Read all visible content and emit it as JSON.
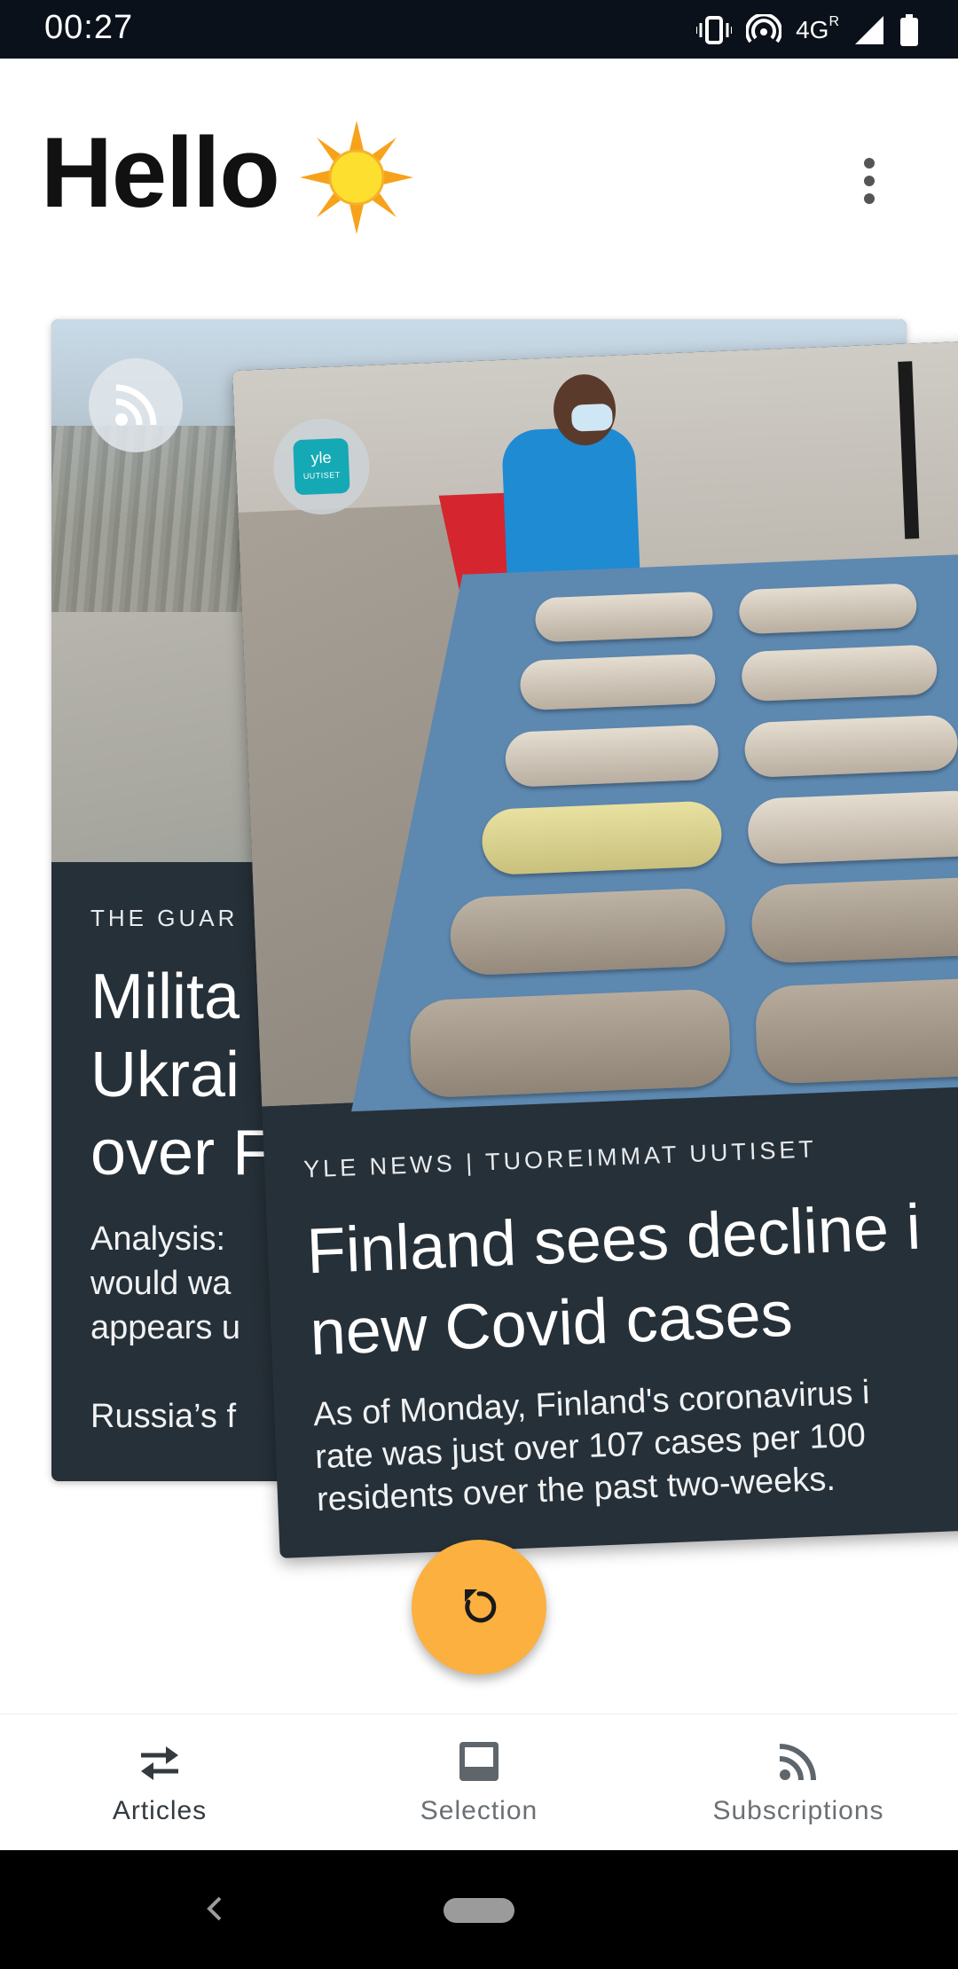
{
  "status_bar": {
    "time": "00:27",
    "network": "4G",
    "roaming": "R"
  },
  "header": {
    "greeting": "Hello",
    "weather_icon": "sun-icon",
    "menu_icon": "more-vert-icon"
  },
  "cards": {
    "back": {
      "source": "THE GUAR",
      "title_lines": [
        "Milita",
        "Ukrai",
        "over F"
      ],
      "description_lines": [
        "Analysis:",
        "would wa",
        "appears u"
      ],
      "body": "Russia’s f",
      "badge_icon": "rss-icon"
    },
    "front": {
      "source": "YLE NEWS | TUOREIMMAT UUTISET",
      "title": "Finland sees decline in new Covid cases",
      "title_lines": [
        "Finland sees decline i",
        "new Covid cases"
      ],
      "description_lines": [
        "As of Monday, Finland's coronavirus i",
        "rate was just over 107 cases per 100",
        "residents over the past two-weeks."
      ],
      "badge_logo_text": "yle",
      "badge_logo_subtext": "UUTISET"
    }
  },
  "fab": {
    "icon": "refresh-icon",
    "color": "#fbb040"
  },
  "bottom_nav": {
    "items": [
      {
        "label": "Articles",
        "icon": "swap-arrows-icon",
        "active": true
      },
      {
        "label": "Selection",
        "icon": "inbox-icon",
        "active": false
      },
      {
        "label": "Subscriptions",
        "icon": "rss-icon",
        "active": false
      }
    ]
  },
  "colors": {
    "card_background": "#263038",
    "accent": "#fbb040",
    "status_bar": "#0b111a"
  }
}
